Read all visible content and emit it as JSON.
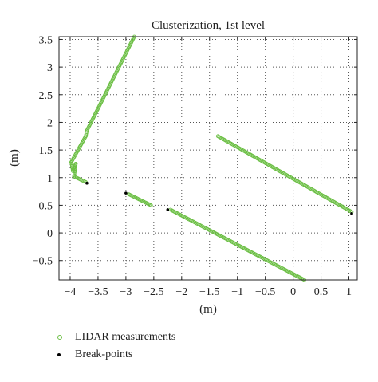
{
  "chart_data": {
    "type": "scatter",
    "title": "Clusterization, 1st level",
    "xlabel": "(m)",
    "ylabel": "(m)",
    "xlim": [
      -4.2,
      1.15
    ],
    "ylim": [
      -0.85,
      3.55
    ],
    "xticks": [
      -4,
      -3.5,
      -3,
      -2.5,
      -2,
      -1.5,
      -1,
      -0.5,
      0,
      0.5,
      1
    ],
    "xtick_labels": [
      "−4",
      "−3.5",
      "−3",
      "−2.5",
      "−2",
      "−1.5",
      "−1",
      "−0.5",
      "0",
      "0.5",
      "1"
    ],
    "yticks": [
      -0.5,
      0,
      0.5,
      1,
      1.5,
      2,
      2.5,
      3,
      3.5
    ],
    "ytick_labels": [
      "−0.5",
      "0",
      "0.5",
      "1",
      "1.5",
      "2",
      "2.5",
      "3",
      "3.5"
    ],
    "grid": true,
    "legend_position": "bottom-left, below plot",
    "colors": {
      "lidar": "#6cbf45",
      "break": "#000000"
    },
    "series": [
      {
        "name": "LIDAR measurements",
        "marker": "open-circle",
        "segments": [
          {
            "from": [
              -2.85,
              3.55
            ],
            "to": [
              -3.7,
              1.85
            ]
          },
          {
            "from": [
              -3.7,
              1.85
            ],
            "to": [
              -3.72,
              1.75
            ]
          },
          {
            "from": [
              -3.72,
              1.75
            ],
            "to": [
              -3.98,
              1.28
            ]
          },
          {
            "from": [
              -3.98,
              1.28
            ],
            "to": [
              -3.95,
              1.12
            ]
          },
          {
            "from": [
              -3.95,
              1.12
            ],
            "to": [
              -3.9,
              1.25
            ]
          },
          {
            "from": [
              -3.9,
              1.25
            ],
            "to": [
              -3.93,
              1.02
            ]
          },
          {
            "from": [
              -3.93,
              1.02
            ],
            "to": [
              -3.72,
              0.92
            ]
          },
          {
            "from": [
              -2.95,
              0.7
            ],
            "to": [
              -2.55,
              0.5
            ]
          },
          {
            "from": [
              -2.2,
              0.42
            ],
            "to": [
              0.2,
              -0.85
            ]
          },
          {
            "from": [
              -1.35,
              1.75
            ],
            "to": [
              1.05,
              0.38
            ]
          }
        ]
      },
      {
        "name": "Break-points",
        "marker": "dot",
        "points": [
          [
            -3.7,
            0.9
          ],
          [
            -3.0,
            0.72
          ],
          [
            -2.25,
            0.42
          ],
          [
            1.05,
            0.35
          ]
        ]
      }
    ]
  }
}
